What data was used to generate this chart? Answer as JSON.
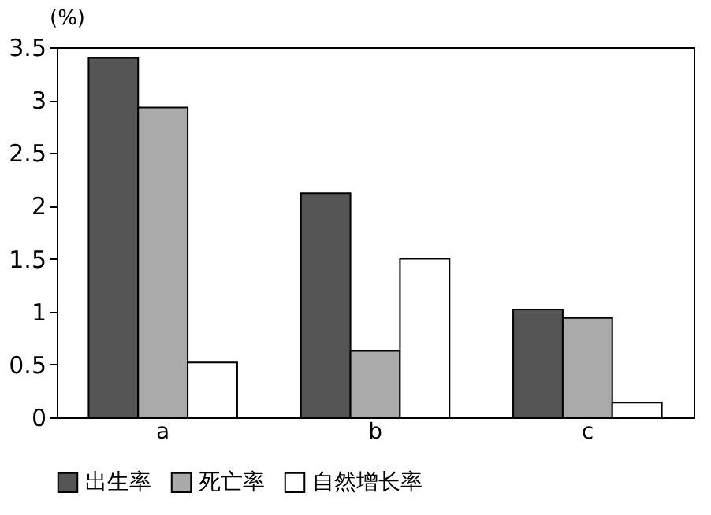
{
  "chart_data": {
    "type": "bar",
    "ylabel": "(%)",
    "categories": [
      "a",
      "b",
      "c"
    ],
    "series": [
      {
        "name": "出生率",
        "color": "#555555",
        "values": [
          3.4,
          2.12,
          1.02
        ]
      },
      {
        "name": "死亡率",
        "color": "#aaaaaa",
        "values": [
          2.93,
          0.63,
          0.94
        ]
      },
      {
        "name": "自然增长率",
        "color": "#ffffff",
        "values": [
          0.52,
          1.5,
          0.14
        ]
      }
    ],
    "ylim": [
      0,
      3.5
    ],
    "yticks": [
      0,
      0.5,
      1,
      1.5,
      2,
      2.5,
      3,
      3.5
    ],
    "grid": false,
    "legend": "bottom"
  }
}
